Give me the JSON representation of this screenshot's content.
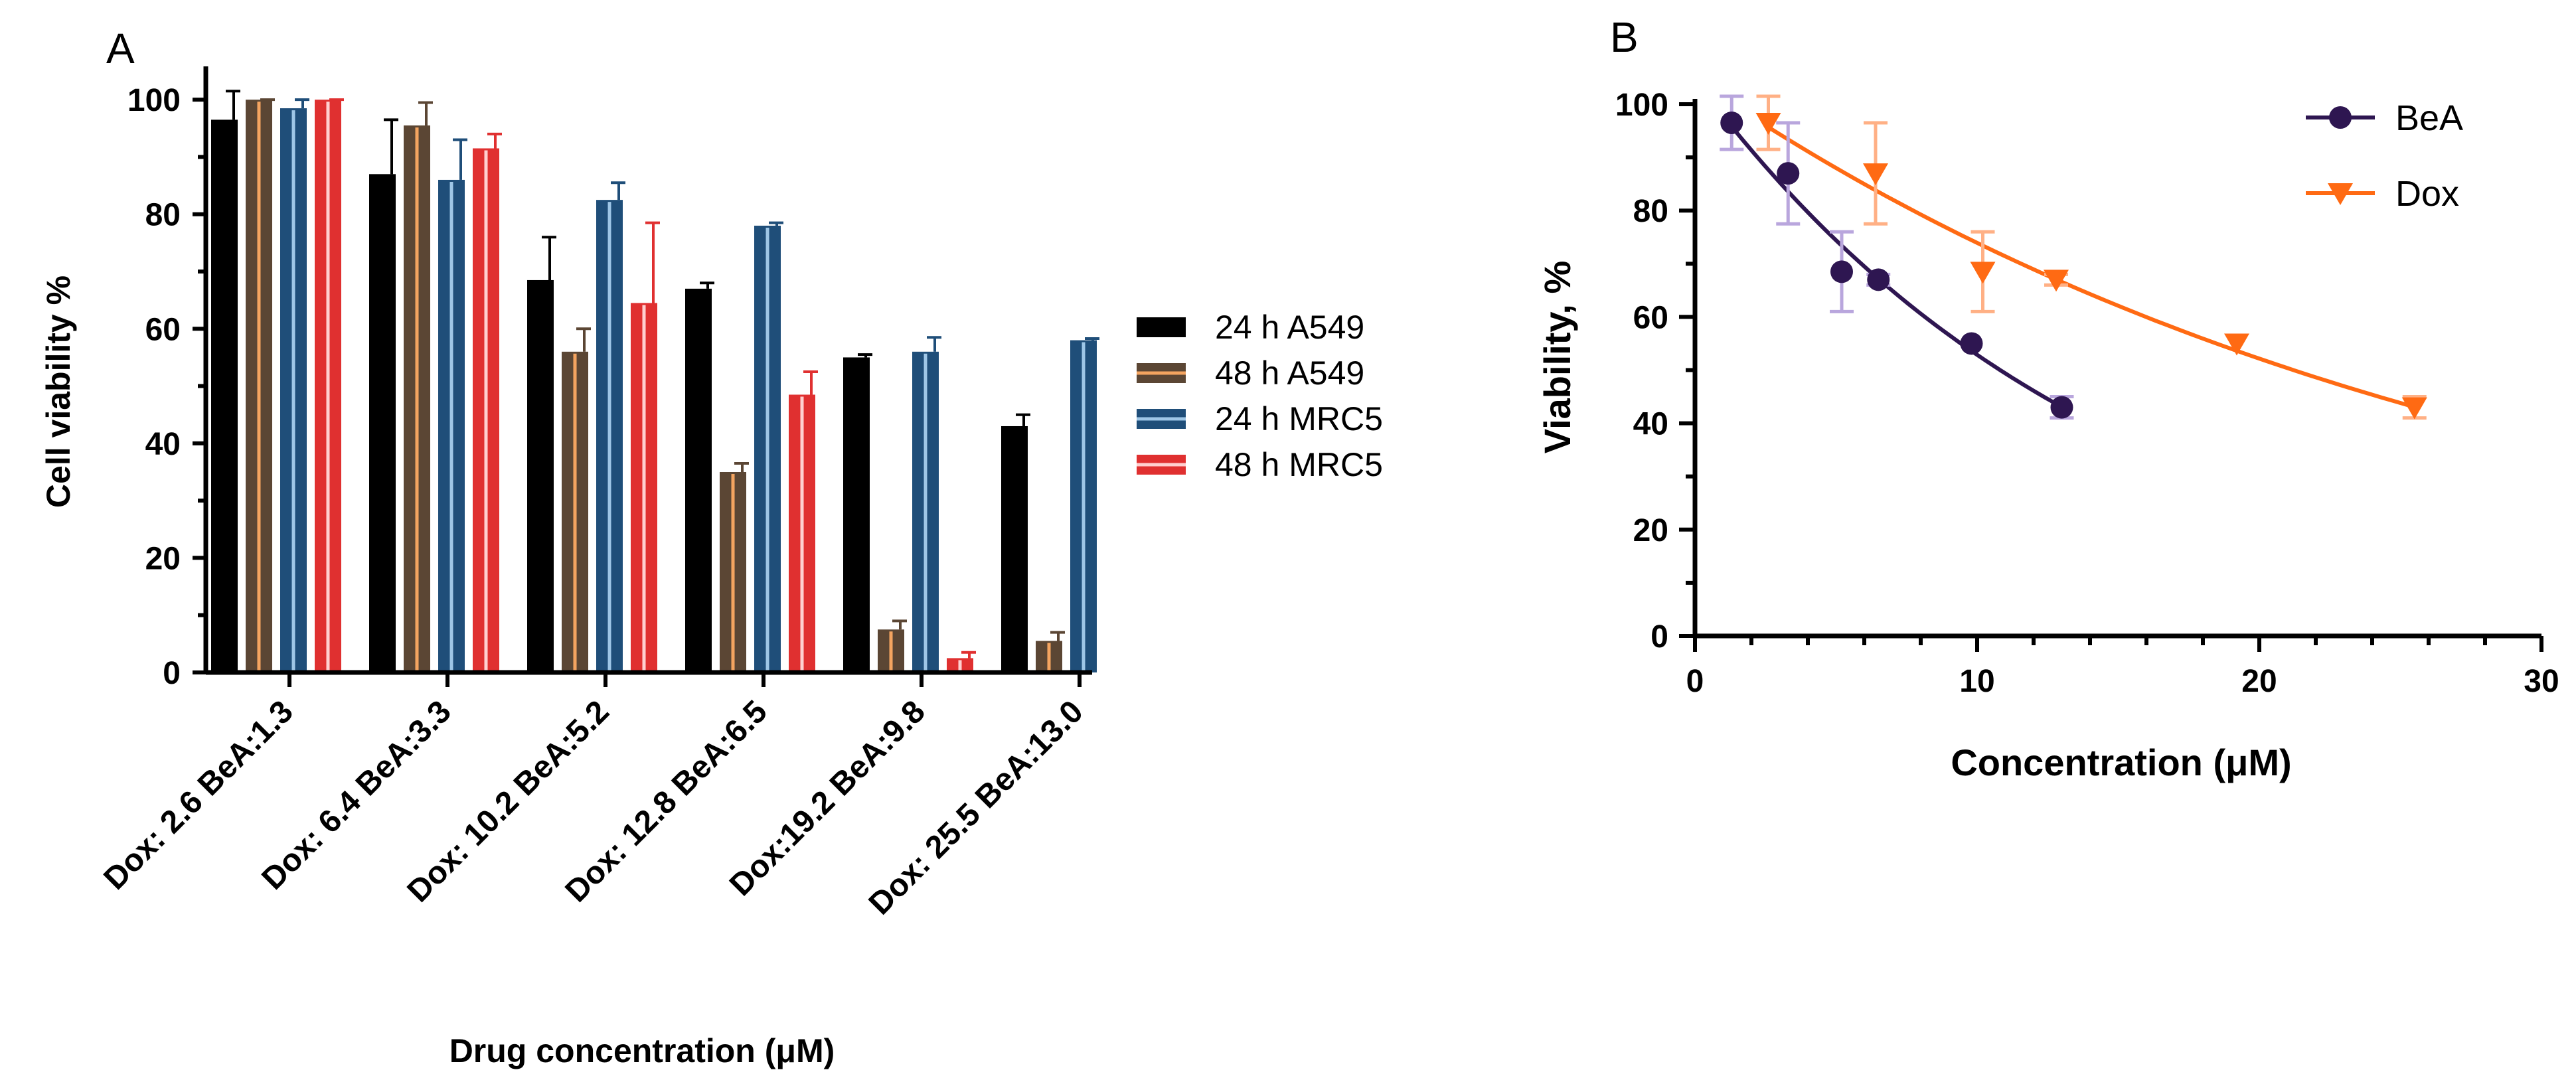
{
  "chart_data": [
    {
      "panel": "A",
      "type": "bar",
      "title": "",
      "xlabel": "Drug concentration (μM)",
      "ylabel": "Cell viability %",
      "ylim": [
        0,
        105
      ],
      "yticks": [
        0,
        20,
        40,
        60,
        80,
        100
      ],
      "categories": [
        "Dox: 2.6 BeA:1.3",
        "Dox: 6.4 BeA:3.3",
        "Dox: 10.2 BeA:5.2",
        "Dox: 12.8 BeA:6.5",
        "Dox:19.2 BeA:9.8",
        "Dox: 25.5 BeA:13.0"
      ],
      "legend_position": "right",
      "series": [
        {
          "name": "24 h A549",
          "color": "#000000",
          "stripe": "#000000",
          "values": [
            96.5,
            87,
            68.5,
            67,
            55,
            43
          ],
          "errors": [
            5,
            9.5,
            7.5,
            1,
            0.5,
            2
          ]
        },
        {
          "name": "48 h A549",
          "color": "#5b4634",
          "stripe": "#f4a460",
          "values": [
            100,
            95.5,
            56,
            35,
            7.5,
            5.5
          ],
          "errors": [
            0,
            4,
            4,
            1.5,
            1.5,
            1.5
          ]
        },
        {
          "name": "24 h MRC5",
          "color": "#1f4e79",
          "stripe": "#9ec6e6",
          "values": [
            98.5,
            86,
            82.5,
            78,
            56,
            58
          ],
          "errors": [
            1.5,
            7,
            3,
            0.5,
            2.5,
            0.3
          ]
        },
        {
          "name": "48 h MRC5",
          "color": "#e03030",
          "stripe": "#ffd0d0",
          "values": [
            100,
            91.5,
            64.5,
            48.5,
            2.5,
            null
          ],
          "errors": [
            0,
            2.5,
            14,
            4,
            1,
            null
          ]
        }
      ]
    },
    {
      "panel": "B",
      "type": "scatter",
      "title": "",
      "xlabel": "Concentration (μM)",
      "ylabel": "Viability, %",
      "xlim": [
        0,
        30
      ],
      "ylim": [
        0,
        100
      ],
      "xticks": [
        0,
        10,
        20,
        30
      ],
      "yticks": [
        0,
        20,
        40,
        60,
        80,
        100
      ],
      "legend_position": "top-right",
      "series": [
        {
          "name": "BeA",
          "marker": "circle",
          "color": "#2e1651",
          "error_color": "#b9a6dd",
          "x": [
            1.3,
            3.3,
            5.2,
            6.5,
            9.8,
            13.0
          ],
          "y": [
            96.5,
            87,
            68.5,
            67,
            55,
            43
          ],
          "errors": [
            5,
            9.5,
            7.5,
            1,
            0.5,
            2
          ]
        },
        {
          "name": "Dox",
          "marker": "triangle-down",
          "color": "#ff6a13",
          "error_color": "#ffb085",
          "x": [
            2.6,
            6.4,
            10.2,
            12.8,
            19.2,
            25.5
          ],
          "y": [
            96.5,
            87,
            68.5,
            67,
            55,
            43
          ],
          "errors": [
            5,
            9.5,
            7.5,
            1,
            0.5,
            2
          ]
        }
      ]
    }
  ],
  "labels": {
    "panel_a": "A",
    "panel_b": "B"
  }
}
